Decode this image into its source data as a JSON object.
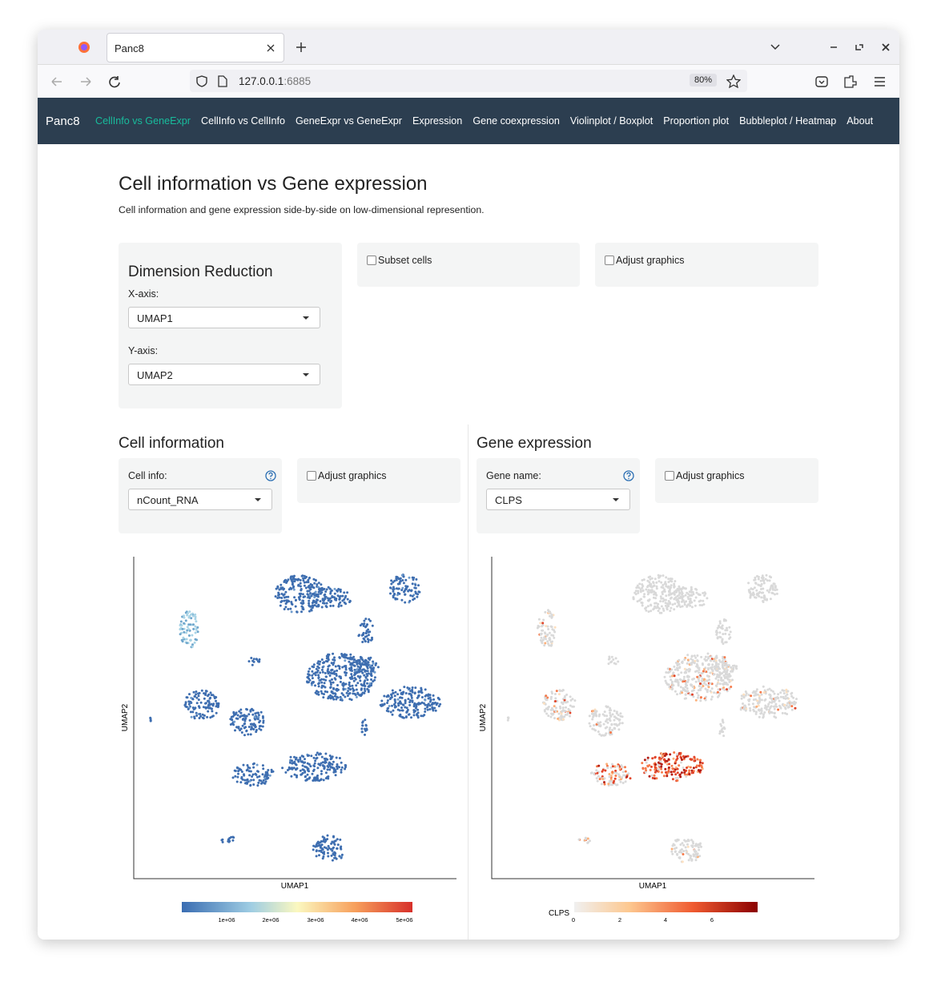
{
  "browser": {
    "tab_title": "Panc8",
    "url_host": "127.0.0.1",
    "url_port": ":6885",
    "zoom": "80%"
  },
  "nav": {
    "brand": "Panc8",
    "items": [
      "CellInfo vs GeneExpr",
      "CellInfo vs CellInfo",
      "GeneExpr vs GeneExpr",
      "Expression",
      "Gene coexpression",
      "Violinplot / Boxplot",
      "Proportion plot",
      "Bubbleplot / Heatmap",
      "About"
    ]
  },
  "header": {
    "title": "Cell information vs Gene expression",
    "subtitle": "Cell information and gene expression side-by-side on low-dimensional represention."
  },
  "dimension_reduction": {
    "title": "Dimension Reduction",
    "x_label": "X-axis:",
    "x_value": "UMAP1",
    "y_label": "Y-axis:",
    "y_value": "UMAP2"
  },
  "subset_cells": "Subset cells",
  "adjust_graphics": "Adjust graphics",
  "cell_info": {
    "title": "Cell information",
    "select_label": "Cell info:",
    "select_value": "nCount_RNA",
    "adjust": "Adjust graphics",
    "plot": {
      "x_label": "UMAP1",
      "y_label": "UMAP2",
      "colorbar_ticks": [
        "1e+06",
        "2e+06",
        "3e+06",
        "4e+06",
        "5e+06"
      ]
    }
  },
  "gene_expression": {
    "title": "Gene expression",
    "select_label": "Gene name:",
    "select_value": "CLPS",
    "adjust": "Adjust graphics",
    "plot": {
      "x_label": "UMAP1",
      "y_label": "UMAP2",
      "colorbar_title": "CLPS",
      "colorbar_ticks": [
        "0",
        "2",
        "4",
        "6"
      ]
    }
  }
}
